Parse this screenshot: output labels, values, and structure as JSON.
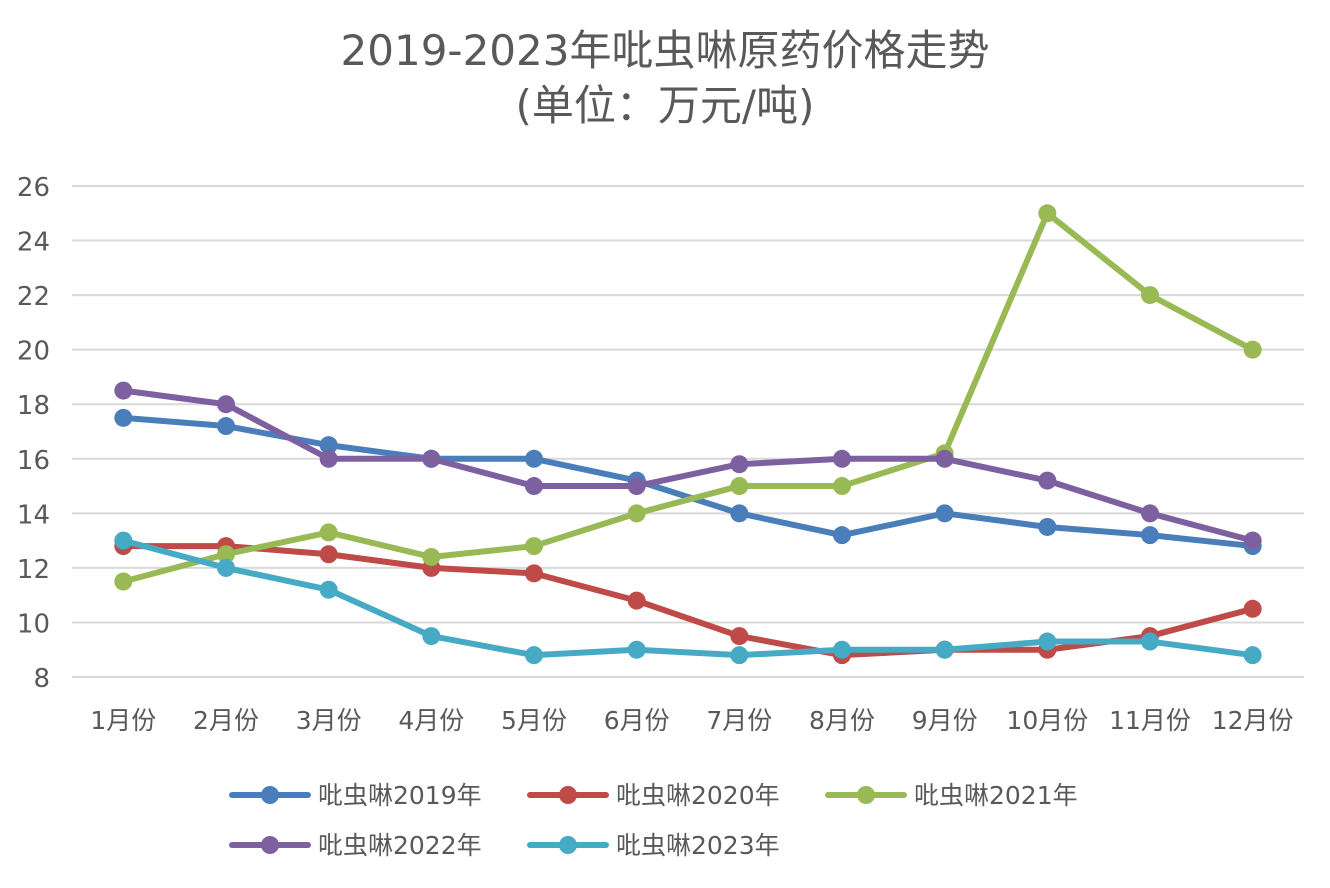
{
  "chart_data": {
    "type": "line",
    "title": "2019-2023年吡虫啉原药价格走势",
    "subtitle": "(单位：万元/吨)",
    "categories": [
      "1月份",
      "2月份",
      "3月份",
      "4月份",
      "5月份",
      "6月份",
      "7月份",
      "8月份",
      "9月份",
      "10月份",
      "11月份",
      "12月份"
    ],
    "ylim": [
      8,
      26
    ],
    "yticks": [
      8,
      10,
      12,
      14,
      16,
      18,
      20,
      22,
      24,
      26
    ],
    "grid": true,
    "legend_position": "bottom",
    "series": [
      {
        "name": "吡虫啉2019年",
        "color": "#4a7ebb",
        "values": [
          17.5,
          17.2,
          16.5,
          16,
          16,
          15.2,
          14,
          13.2,
          14,
          13.5,
          13.2,
          12.8
        ]
      },
      {
        "name": "吡虫啉2020年",
        "color": "#be4b48",
        "values": [
          12.8,
          12.8,
          12.5,
          12,
          11.8,
          10.8,
          9.5,
          8.8,
          9,
          9,
          9.5,
          10.5
        ]
      },
      {
        "name": "吡虫啉2021年",
        "color": "#98b954",
        "values": [
          11.5,
          12.5,
          13.3,
          12.4,
          12.8,
          14,
          15,
          15,
          16.2,
          25,
          22,
          20
        ]
      },
      {
        "name": "吡虫啉2022年",
        "color": "#7d60a0",
        "values": [
          18.5,
          18,
          16,
          16,
          15,
          15,
          15.8,
          16,
          16,
          15.2,
          14,
          13
        ]
      },
      {
        "name": "吡虫啉2023年",
        "color": "#46aac5",
        "values": [
          13,
          12,
          11.2,
          9.5,
          8.8,
          9,
          8.8,
          9,
          9,
          9.3,
          9.3,
          8.8
        ]
      }
    ]
  }
}
